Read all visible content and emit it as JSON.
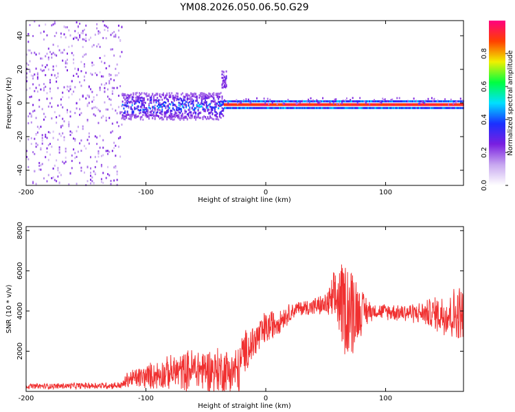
{
  "title": "YM08.2026.050.06.50.G29",
  "chart_data": [
    {
      "type": "heatmap",
      "xlabel": "Height of straight line (km)",
      "ylabel": "Frequency (Hz)",
      "xlim": [
        -200,
        165
      ],
      "ylim": [
        -49,
        49
      ],
      "x_ticks": [
        -200,
        -100,
        0,
        100
      ],
      "y_ticks": [
        -40,
        -20,
        0,
        20,
        40
      ],
      "colorbar": {
        "label": "Normalized spectral amplitude",
        "range": [
          0,
          1
        ],
        "ticks": [
          "0.0",
          "0.2",
          "0.4",
          "0.6",
          "0.8"
        ],
        "colors": [
          "#ffffff",
          "#c8a8f0",
          "#7a1fe0",
          "#1a30ff",
          "#00e0ff",
          "#00ff40",
          "#f0f000",
          "#ff4000",
          "#ff0080"
        ]
      },
      "regions": [
        {
          "x_range": [
            -200,
            -120
          ],
          "pattern": "diffuse noise",
          "freq_range": [
            -49,
            49
          ]
        },
        {
          "x_range": [
            -120,
            -35
          ],
          "pattern": "broad band",
          "freq_center": -2,
          "freq_halfwidth": 8
        },
        {
          "x_range": [
            -37,
            -33
          ],
          "pattern": "spur",
          "freq_center": 14,
          "freq_halfwidth": 5
        },
        {
          "x_range": [
            -35,
            165
          ],
          "pattern": "narrow line",
          "freq_center": -1,
          "freq_halfwidth": 2,
          "peak_amplitude": 0.95
        }
      ]
    },
    {
      "type": "line",
      "xlabel": "Height of straight line (km)",
      "ylabel": "SNR (10 * v/v)",
      "xlim": [
        -200,
        165
      ],
      "ylim": [
        0,
        8200
      ],
      "x_ticks": [
        -200,
        -100,
        0,
        100
      ],
      "y_ticks": [
        2000,
        4000,
        6000,
        8000
      ],
      "color": "#f03030",
      "envelope": [
        {
          "x": -200,
          "y": 250,
          "spread": 150
        },
        {
          "x": -120,
          "y": 300,
          "spread": 200
        },
        {
          "x": -115,
          "y": 600,
          "spread": 500
        },
        {
          "x": -60,
          "y": 1100,
          "spread": 1200
        },
        {
          "x": -22,
          "y": 1000,
          "spread": 1400
        },
        {
          "x": -20,
          "y": 1800,
          "spread": 1200
        },
        {
          "x": 0,
          "y": 3100,
          "spread": 1000
        },
        {
          "x": 25,
          "y": 4100,
          "spread": 400
        },
        {
          "x": 50,
          "y": 4300,
          "spread": 600
        },
        {
          "x": 60,
          "y": 4600,
          "spread": 2000
        },
        {
          "x": 70,
          "y": 4100,
          "spread": 3200
        },
        {
          "x": 80,
          "y": 4000,
          "spread": 1200
        },
        {
          "x": 90,
          "y": 4000,
          "spread": 400
        },
        {
          "x": 130,
          "y": 3900,
          "spread": 600
        },
        {
          "x": 165,
          "y": 3800,
          "spread": 1800
        }
      ]
    }
  ]
}
